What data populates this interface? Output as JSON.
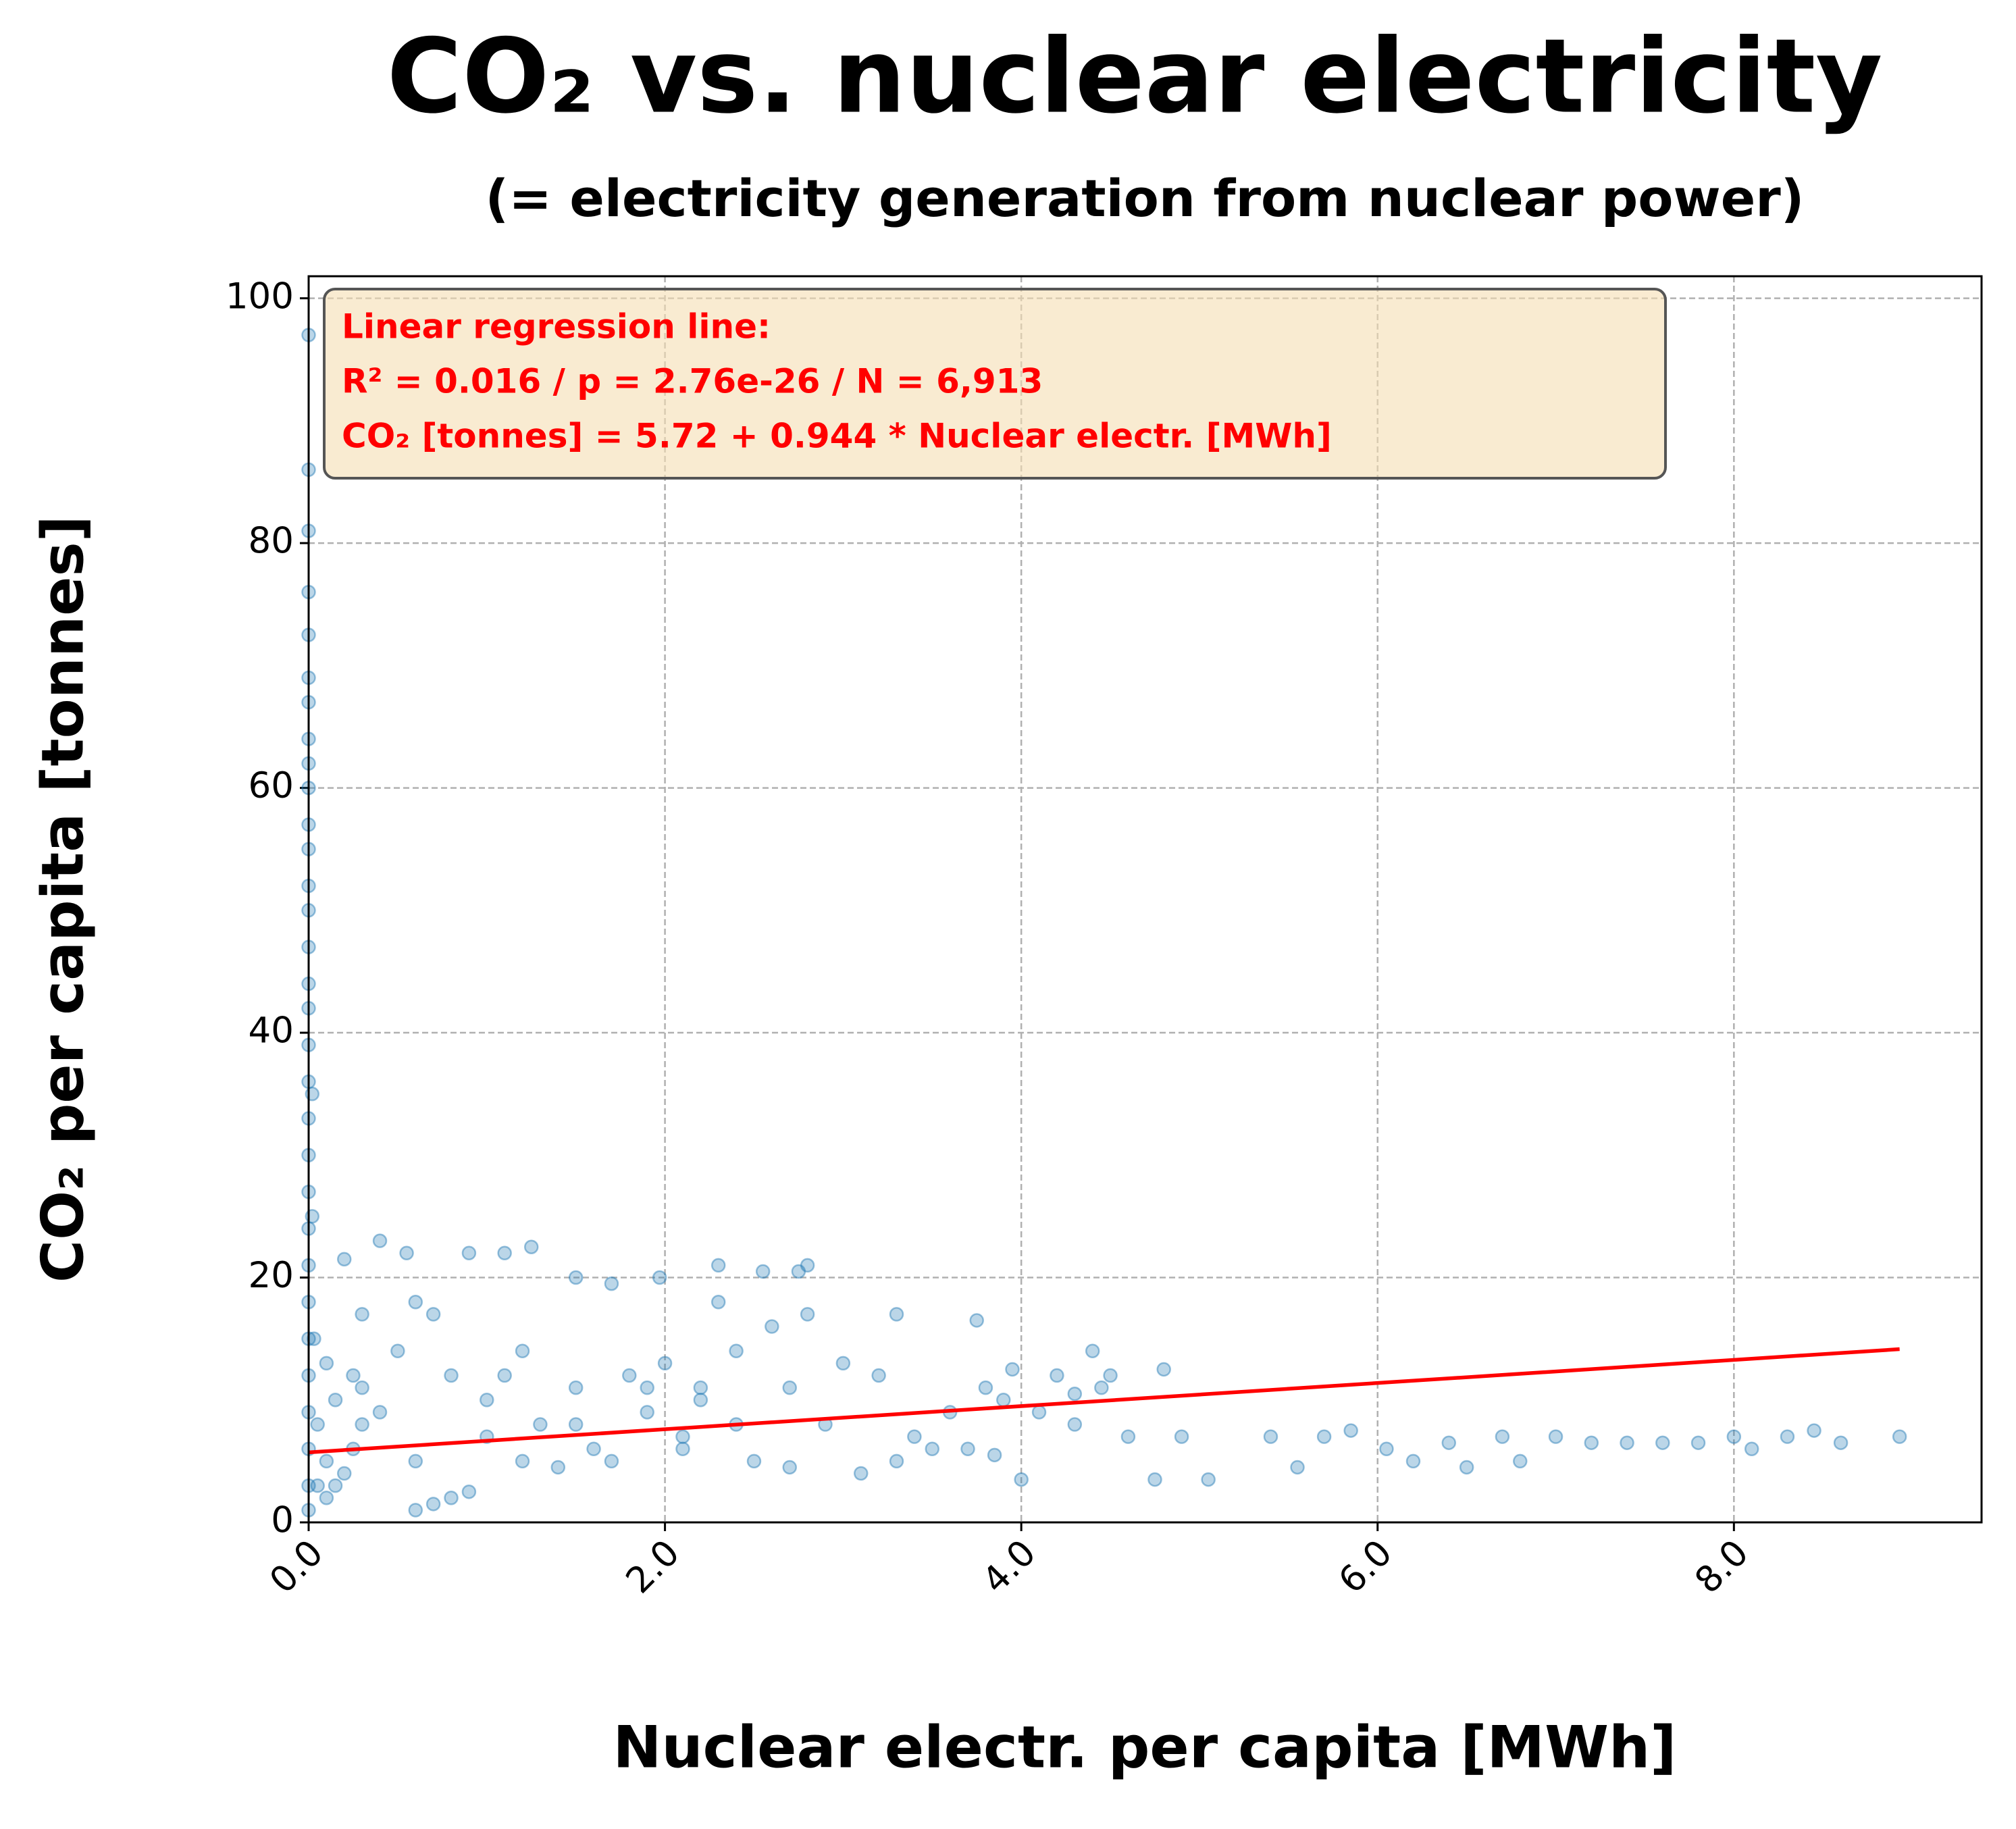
{
  "chart_data": {
    "type": "scatter",
    "title": "CO₂ vs. nuclear electricity",
    "subtitle": "(= electricity generation from nuclear power)",
    "x_label": "Nuclear electr. per capita [MWh]",
    "y_label": "CO₂ per capita [tonnes]",
    "annotation": [
      "Linear regression line:",
      "R² = 0.016   /   p = 2.76e-26   /   N = 6,913",
      "CO₂ [tonnes] = 5.72 + 0.944 * Nuclear electr. [MWh]"
    ],
    "xlim": [
      0,
      9.39
    ],
    "ylim": [
      0,
      101.8
    ],
    "xticks": [
      {
        "value": 0,
        "label": "0.0"
      },
      {
        "value": 2,
        "label": "2.0"
      },
      {
        "value": 4,
        "label": "4.0"
      },
      {
        "value": 6,
        "label": "6.0"
      },
      {
        "value": 8,
        "label": "8.0"
      }
    ],
    "yticks": [
      0,
      20,
      40,
      60,
      80,
      100
    ],
    "grid": true,
    "series": [
      {
        "color": "#1f77b4",
        "x": [
          0,
          0,
          0,
          0,
          0,
          0,
          0,
          0,
          0,
          0,
          0,
          0,
          0,
          0,
          0,
          0,
          0,
          0,
          0,
          0,
          0,
          0,
          0,
          0,
          0,
          0,
          0,
          0,
          0,
          0,
          0,
          0.02,
          0.02,
          0.03,
          0.05,
          0.05,
          0.1,
          0.15,
          0.2,
          0.25,
          0.3,
          0.2,
          0.1,
          0.3,
          0.4,
          0.55,
          0.6,
          0.7,
          0.9,
          1.1,
          1.25,
          1.5,
          1.7,
          1.97,
          2.3,
          2.55,
          2.8,
          2.75,
          0.5,
          0.6,
          0.7,
          0.8,
          0.9,
          0.6,
          0.8,
          1.0,
          1.2,
          1.3,
          1.5,
          1.6,
          1.8,
          1.9,
          2.0,
          2.1,
          2.2,
          2.3,
          2.4,
          2.5,
          2.6,
          2.7,
          2.8,
          2.9,
          3.0,
          3.1,
          3.2,
          3.3,
          3.4,
          3.5,
          3.6,
          3.7,
          3.75,
          3.8,
          3.85,
          3.95,
          4.0,
          4.1,
          4.2,
          4.3,
          4.4,
          4.5,
          4.6,
          4.75,
          4.8,
          4.9,
          5.05,
          5.4,
          5.55,
          5.7,
          5.85,
          6.05,
          6.2,
          6.4,
          6.5,
          6.7,
          6.8,
          7.0,
          7.2,
          7.4,
          7.6,
          7.8,
          8.0,
          8.1,
          8.3,
          8.45,
          8.6,
          8.93,
          1.2,
          1.4,
          1.7,
          2.1,
          2.7,
          3.3,
          0.4,
          0.3,
          0.25,
          0.15,
          0.1,
          1.0,
          1.1,
          1.5,
          1.9,
          2.4,
          2.2,
          4.45,
          4.3,
          3.9
        ],
        "values": [
          97,
          86,
          81,
          76,
          72.5,
          69,
          67,
          64,
          62,
          60,
          57,
          55,
          52,
          50,
          47,
          44,
          42,
          39,
          36,
          33,
          30,
          27,
          24,
          21,
          18,
          15,
          12,
          9,
          6,
          3,
          1,
          35,
          25,
          15,
          8,
          3,
          5,
          10,
          21.5,
          12,
          8,
          4,
          13,
          17,
          23,
          22,
          18,
          17,
          22,
          22,
          22.5,
          20,
          19.5,
          20,
          21,
          20.5,
          21,
          20.5,
          14,
          5,
          1.5,
          2,
          2.5,
          1,
          12,
          10,
          14,
          8,
          11,
          6,
          12,
          9,
          13,
          7,
          10,
          18,
          14,
          5,
          16,
          11,
          17,
          8,
          13,
          4,
          12,
          17,
          7,
          6,
          9,
          6,
          16.5,
          11,
          5.5,
          12.5,
          3.5,
          9,
          12,
          8,
          14,
          12,
          7,
          3.5,
          12.5,
          7,
          3.5,
          7,
          4.5,
          7,
          7.5,
          6,
          5,
          6.5,
          4.5,
          7,
          5,
          7,
          6.5,
          6.5,
          6.5,
          6.5,
          7,
          6,
          7,
          7.5,
          6.5,
          7,
          5,
          4.5,
          5,
          6,
          4.5,
          5,
          9,
          11,
          6,
          3,
          2,
          7,
          12,
          8,
          11,
          8,
          11,
          11,
          10.5,
          10
        ]
      },
      {
        "color": "#ff0000",
        "x": [
          0,
          8.93
        ],
        "values": [
          5.72,
          14.15
        ]
      }
    ]
  }
}
